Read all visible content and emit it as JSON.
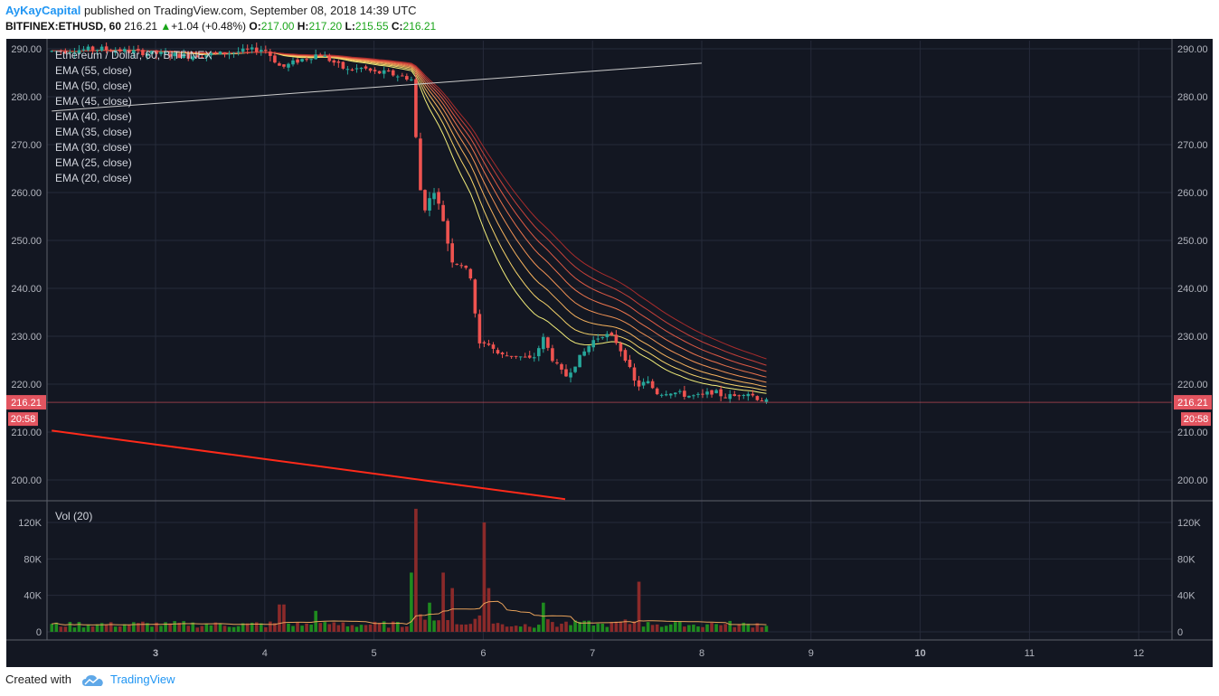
{
  "header": {
    "author": "AyKayCapital",
    "published": "published on TradingView.com, September 08, 2018 14:39 UTC",
    "symbol": "BITFINEX:ETHUSD, 60",
    "last": "216.21",
    "change": "+1.04 (+0.48%)",
    "o_label": "O:",
    "o_value": "217.00",
    "h_label": "H:",
    "h_value": "217.20",
    "l_label": "L:",
    "l_value": "215.55",
    "c_label": "C:",
    "c_value": "216.21"
  },
  "footer": {
    "created_with": "Created with",
    "brand": "TradingView"
  },
  "colors": {
    "background": "#131722",
    "grid": "#262b3a",
    "up": "#26a69a",
    "down": "#ef5350",
    "vol_up": "#1f8b1f",
    "vol_down": "#8b2a2a",
    "trend_red": "#ff2a1a",
    "trend_white": "#cccccc",
    "price_line": "#e35560",
    "vol_ma": "#e7a15a"
  },
  "chart_data": {
    "type": "candlestick",
    "title": "Ethereum / Dollar, 60, BITFINEX",
    "legend": [
      "EMA (55, close)",
      "EMA (50, close)",
      "EMA (45, close)",
      "EMA (40, close)",
      "EMA (35, close)",
      "EMA (30, close)",
      "EMA (25, close)",
      "EMA (20, close)"
    ],
    "price_ticks": [
      "290.00",
      "280.00",
      "270.00",
      "260.00",
      "250.00",
      "240.00",
      "230.00",
      "220.00",
      "210.00",
      "200.00"
    ],
    "ylim": [
      196,
      292
    ],
    "x_ticks": [
      "3",
      "4",
      "5",
      "6",
      "7",
      "8",
      "9",
      "10",
      "11",
      "12"
    ],
    "xlim": [
      2.0,
      12.2
    ],
    "last_price": "216.21",
    "countdown": "20:58",
    "price_path": [
      [
        2.05,
        289.5
      ],
      [
        2.5,
        290.0
      ],
      [
        3.0,
        289.0
      ],
      [
        3.3,
        288.5
      ],
      [
        3.6,
        289.0
      ],
      [
        4.0,
        290.0
      ],
      [
        4.15,
        286.0
      ],
      [
        4.3,
        287.5
      ],
      [
        4.5,
        289.0
      ],
      [
        4.75,
        285.5
      ],
      [
        4.9,
        286.0
      ],
      [
        5.0,
        285.0
      ],
      [
        5.1,
        285.0
      ],
      [
        5.3,
        284.0
      ],
      [
        5.35,
        283.5
      ],
      [
        5.4,
        265.0
      ],
      [
        5.45,
        256.0
      ],
      [
        5.55,
        260.5
      ],
      [
        5.65,
        253.0
      ],
      [
        5.7,
        246.0
      ],
      [
        5.8,
        245.0
      ],
      [
        5.9,
        242.0
      ],
      [
        5.95,
        228.0
      ],
      [
        6.05,
        228.5
      ],
      [
        6.15,
        226.0
      ],
      [
        6.3,
        226.0
      ],
      [
        6.45,
        225.0
      ],
      [
        6.55,
        229.5
      ],
      [
        6.65,
        224.5
      ],
      [
        6.75,
        221.5
      ],
      [
        6.85,
        224.5
      ],
      [
        6.95,
        227.5
      ],
      [
        7.0,
        229.0
      ],
      [
        7.1,
        230.5
      ],
      [
        7.2,
        229.5
      ],
      [
        7.3,
        225.5
      ],
      [
        7.4,
        219.5
      ],
      [
        7.5,
        220.5
      ],
      [
        7.6,
        218.0
      ],
      [
        7.7,
        218.5
      ],
      [
        7.8,
        218.0
      ],
      [
        7.9,
        217.5
      ],
      [
        8.0,
        217.5
      ],
      [
        8.1,
        218.5
      ],
      [
        8.2,
        217.5
      ],
      [
        8.3,
        217.5
      ],
      [
        8.4,
        218.5
      ],
      [
        8.5,
        217.2
      ],
      [
        8.6,
        216.21
      ]
    ],
    "ema_periods": [
      20,
      25,
      30,
      35,
      40,
      45,
      50,
      55
    ],
    "ema_colors": [
      "#f3ee7a",
      "#f5d36a",
      "#f6b35e",
      "#f29355",
      "#ec744d",
      "#e05a45",
      "#c8413a",
      "#a82c2c"
    ],
    "trendlines": [
      {
        "name": "ascending-line",
        "points": [
          [
            2.05,
            277.0
          ],
          [
            8.0,
            287.0
          ]
        ]
      },
      {
        "name": "descending-support",
        "points": [
          [
            2.05,
            210.3
          ],
          [
            6.75,
            196.0
          ]
        ]
      }
    ],
    "volume": {
      "label": "Vol (20)",
      "ticks": [
        "120K",
        "80K",
        "40K",
        "0"
      ],
      "ylim": [
        0,
        140000
      ],
      "spikes": [
        {
          "x": 5.4,
          "v": 135000
        },
        {
          "x": 5.35,
          "v": 65000
        },
        {
          "x": 5.65,
          "v": 65000
        },
        {
          "x": 5.72,
          "v": 48000
        },
        {
          "x": 6.0,
          "v": 120000
        },
        {
          "x": 6.05,
          "v": 48000
        },
        {
          "x": 7.42,
          "v": 55000
        },
        {
          "x": 4.15,
          "v": 30000
        },
        {
          "x": 4.48,
          "v": 23000
        },
        {
          "x": 5.5,
          "v": 32000
        },
        {
          "x": 6.55,
          "v": 32000
        }
      ]
    }
  }
}
